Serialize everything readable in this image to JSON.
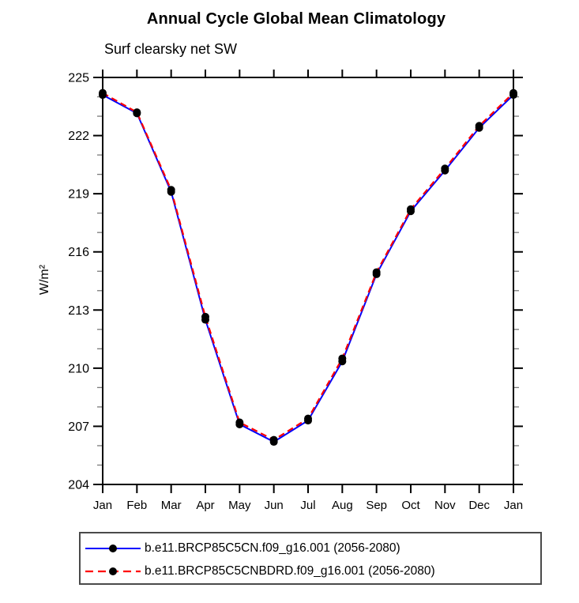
{
  "chart_data": {
    "type": "line",
    "title": "Annual Cycle Global Mean Climatology",
    "subtitle": "Surf clearsky net SW",
    "ylabel": "W/m²",
    "xlabel": "",
    "categories": [
      "Jan",
      "Feb",
      "Mar",
      "Apr",
      "May",
      "Jun",
      "Jul",
      "Aug",
      "Sep",
      "Oct",
      "Nov",
      "Dec",
      "Jan"
    ],
    "ylim": [
      204,
      225
    ],
    "yticks": [
      204,
      207,
      210,
      213,
      216,
      219,
      222,
      225
    ],
    "minor_tick_step": 1,
    "grid": false,
    "legend_position": "bottom",
    "marker_color": "#000000",
    "series": [
      {
        "name": "b.e11.BRCP85C5CN.f09_g16.001 (2056-2080)",
        "color": "#0000ff",
        "style": "solid",
        "values": [
          224.1,
          223.15,
          219.1,
          212.5,
          207.1,
          206.2,
          207.3,
          210.35,
          214.85,
          218.1,
          220.2,
          222.4,
          224.1
        ]
      },
      {
        "name": "b.e11.BRCP85C5CNBDRD.f09_g16.001 (2056-2080)",
        "color": "#ff0000",
        "style": "dashed",
        "values": [
          224.2,
          223.2,
          219.2,
          212.65,
          207.2,
          206.3,
          207.4,
          210.5,
          214.95,
          218.2,
          220.3,
          222.5,
          224.2
        ]
      }
    ]
  }
}
